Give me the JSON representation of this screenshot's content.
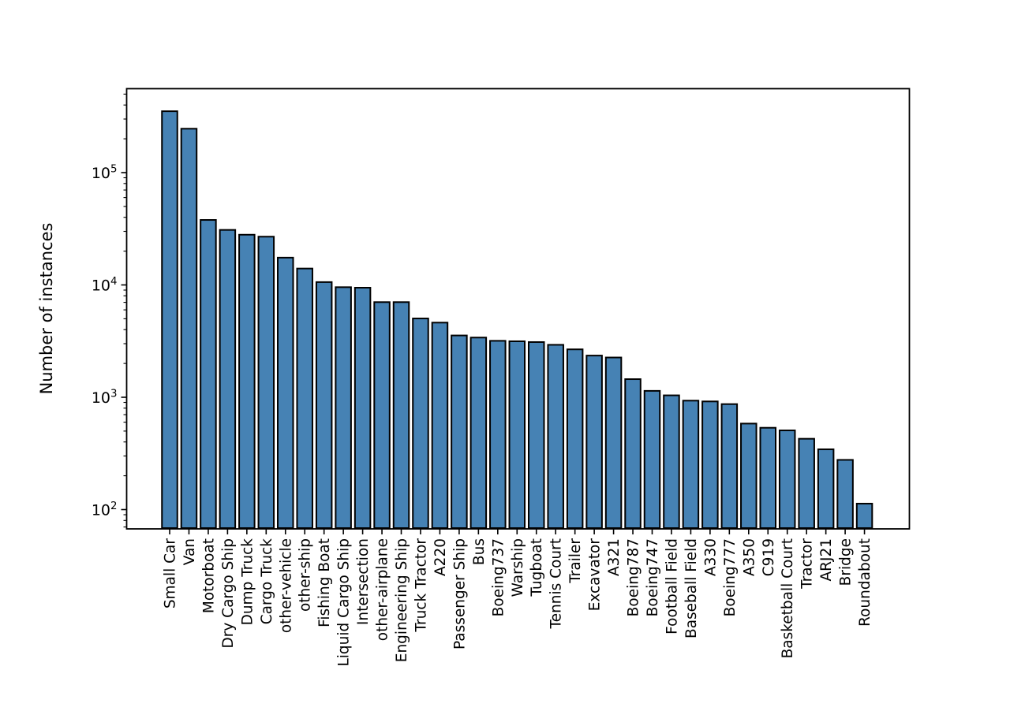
{
  "figure": {
    "background": "#ffffff",
    "title": ""
  },
  "chart_data": {
    "type": "bar",
    "title": "",
    "xlabel": "",
    "ylabel": "Number of instances",
    "yscale": "log",
    "ylim": [
      67,
      559000
    ],
    "grid": false,
    "legend": null,
    "bar_color": "#4682B4",
    "bar_edge_color": "#000000",
    "categories": [
      "Small Car",
      "Van",
      "Motorboat",
      "Dry Cargo Ship",
      "Dump Truck",
      "Cargo Truck",
      "other-vehicle",
      "other-ship",
      "Fishing Boat",
      "Liquid Cargo Ship",
      "Intersection",
      "other-airplane",
      "Engineering Ship",
      "Truck Tractor",
      "A220",
      "Passenger Ship",
      "Bus",
      "Boeing737",
      "Warship",
      "Tugboat",
      "Tennis Court",
      "Trailer",
      "Excavator",
      "A321",
      "Boeing787",
      "Boeing747",
      "Football Field",
      "Baseball Field",
      "A330",
      "Boeing777",
      "A350",
      "C919",
      "Basketball Court",
      "Tractor",
      "ARJ21",
      "Bridge",
      "Roundabout"
    ],
    "values": [
      352000,
      246000,
      37900,
      30900,
      28000,
      26900,
      17500,
      14000,
      10600,
      9550,
      9450,
      7030,
      7030,
      5030,
      4620,
      3550,
      3400,
      3180,
      3150,
      3100,
      2930,
      2670,
      2350,
      2260,
      1450,
      1140,
      1040,
      933,
      918,
      869,
      583,
      535,
      507,
      427,
      344,
      277,
      113
    ],
    "y_ticks": [
      {
        "value": 100,
        "base": "10",
        "exp": "2"
      },
      {
        "value": 1000,
        "base": "10",
        "exp": "3"
      },
      {
        "value": 10000,
        "base": "10",
        "exp": "4"
      },
      {
        "value": 100000,
        "base": "10",
        "exp": "5"
      }
    ]
  }
}
